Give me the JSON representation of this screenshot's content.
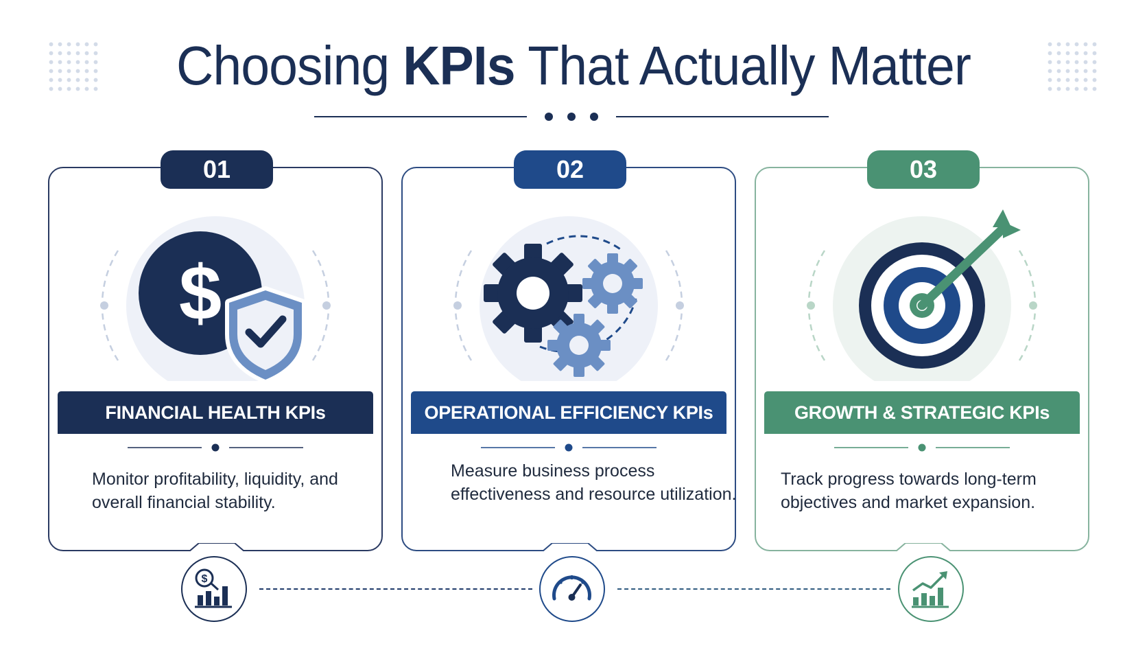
{
  "title": {
    "part1": "Choosing ",
    "part2": "KPIs",
    "part3": " That Actually Matter"
  },
  "colors": {
    "navy": "#1b2f55",
    "blue": "#1f4a8a",
    "green": "#4a9273",
    "light_blue": "#6b8fc4",
    "halo": "#eef1f8"
  },
  "cards": [
    {
      "number": "01",
      "heading": "FINANCIAL HEALTH KPIs",
      "description": "Monitor profitability, liquidity, and overall financial stability.",
      "main_icon": "dollar-shield-icon",
      "bottom_icon": "dollar-bar-chart-icon"
    },
    {
      "number": "02",
      "heading": "OPERATIONAL EFFICIENCY KPIs",
      "description": "Measure business process effectiveness and resource utilization.",
      "main_icon": "gears-icon",
      "bottom_icon": "speedometer-icon"
    },
    {
      "number": "03",
      "heading": "GROWTH & STRATEGIC KPIs",
      "description": "Track progress towards long-term objectives and market expansion.",
      "main_icon": "target-arrow-icon",
      "bottom_icon": "growth-chart-icon"
    }
  ]
}
